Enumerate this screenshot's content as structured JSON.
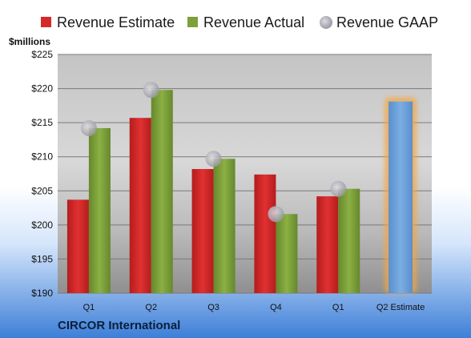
{
  "chart_data": {
    "type": "bar",
    "title": "",
    "company": "CIRCOR International",
    "ylabel": "$millions",
    "ylim": [
      190,
      225
    ],
    "yticks": [
      190,
      195,
      200,
      205,
      210,
      215,
      220,
      225
    ],
    "ytick_labels": [
      "$190",
      "$195",
      "$200",
      "$205",
      "$210",
      "$215",
      "$220",
      "$225"
    ],
    "grid": true,
    "legend_position": "top",
    "categories": [
      "Q1",
      "Q2",
      "Q3",
      "Q4",
      "Q1",
      "Q2 Estimate"
    ],
    "series": [
      {
        "name": "Revenue Estimate",
        "kind": "bar",
        "color": "#d42a2a",
        "values": [
          203.7,
          215.7,
          208.2,
          207.4,
          204.2,
          null
        ]
      },
      {
        "name": "Revenue Actual",
        "kind": "bar",
        "color": "#7da03a",
        "values": [
          214.2,
          219.8,
          209.7,
          201.6,
          205.3,
          null
        ]
      },
      {
        "name": "Revenue GAAP",
        "kind": "marker",
        "color": "#b0b0b8",
        "values": [
          214.2,
          219.8,
          209.7,
          201.6,
          205.3,
          null
        ]
      },
      {
        "name": "Q2 Estimate",
        "kind": "highlight-bar",
        "color": "#6a9fd6",
        "glow_color": "#f5a640",
        "values": [
          null,
          null,
          null,
          null,
          null,
          218.1
        ]
      }
    ]
  }
}
